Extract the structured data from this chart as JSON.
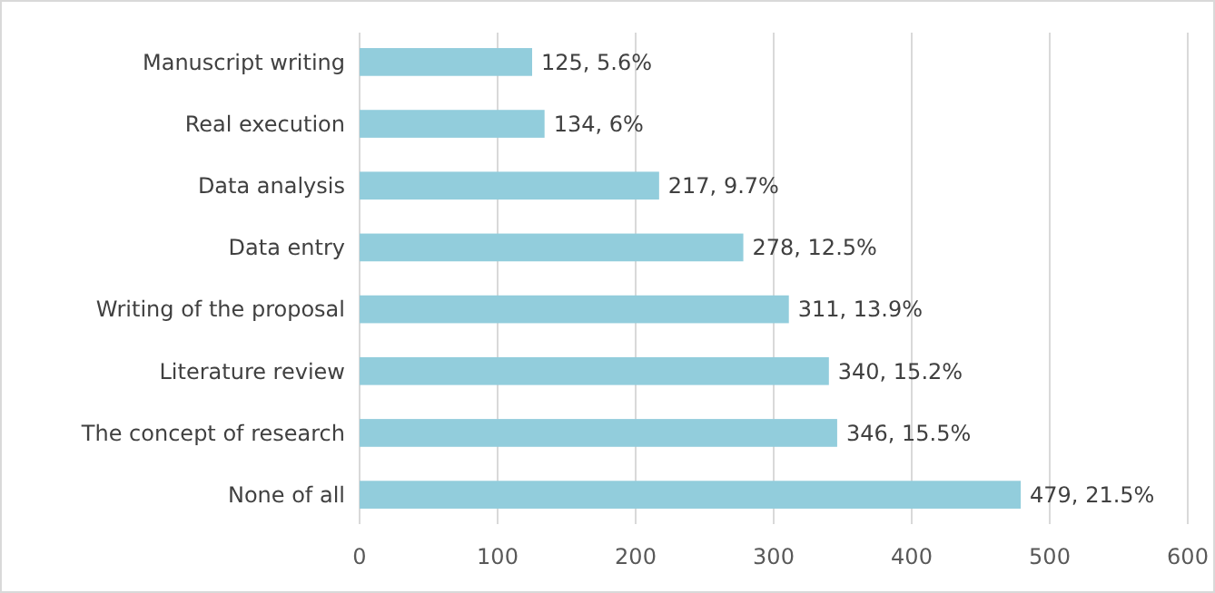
{
  "chart_data": {
    "type": "bar",
    "orientation": "horizontal",
    "categories": [
      "Manuscript writing",
      "Real execution",
      "Data analysis",
      "Data entry",
      "Writing of the proposal",
      "Literature review",
      "The concept of research",
      "None of all"
    ],
    "values": [
      125,
      134,
      217,
      278,
      311,
      340,
      346,
      479
    ],
    "value_labels": [
      "125, 5.6%",
      "134, 6%",
      "217, 9.7%",
      "278, 12.5%",
      "311, 13.9%",
      "340, 15.2%",
      "346, 15.5%",
      "479, 21.5%"
    ],
    "color": "#92cddc",
    "xlim": [
      0,
      600
    ],
    "xticks": [
      0,
      100,
      200,
      300,
      400,
      500,
      600
    ],
    "grid": "x"
  }
}
